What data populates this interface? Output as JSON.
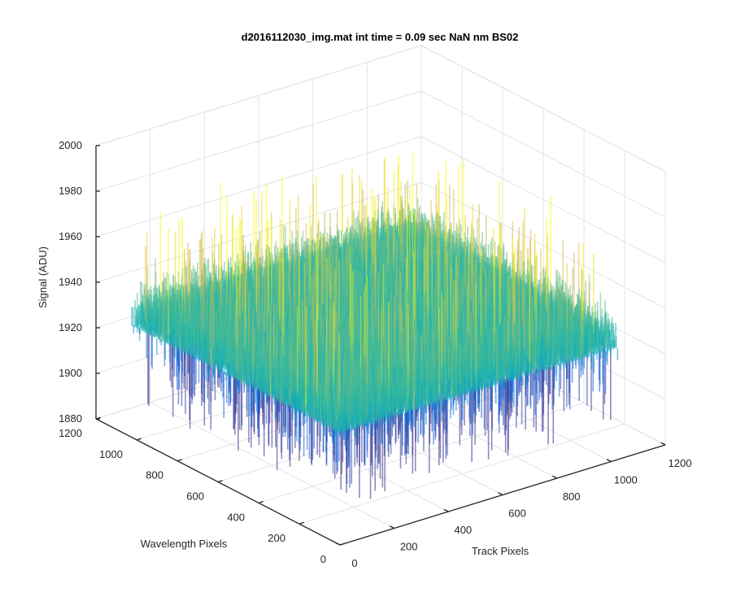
{
  "chart_data": {
    "type": "surface",
    "title": "d2016112030_img.mat int time = 0.09 sec  NaN nm BS02",
    "xlabel": "Track Pixels",
    "ylabel": "Wavelength Pixels",
    "zlabel": "Signal (ADU)",
    "xlim": [
      0,
      1200
    ],
    "ylim": [
      0,
      1200
    ],
    "zlim": [
      1880,
      2000
    ],
    "x_ticks": [
      0,
      200,
      400,
      600,
      800,
      1000,
      1200
    ],
    "y_ticks": [
      0,
      200,
      400,
      600,
      800,
      1000,
      1200
    ],
    "z_ticks": [
      1880,
      1900,
      1920,
      1940,
      1960,
      1980,
      2000
    ],
    "data_extent": {
      "x": [
        0,
        1024
      ],
      "y": [
        0,
        1024
      ]
    },
    "baseline_signal": 1937,
    "noise_range": [
      1895,
      1990
    ],
    "colormap": "parula",
    "grid": true
  }
}
